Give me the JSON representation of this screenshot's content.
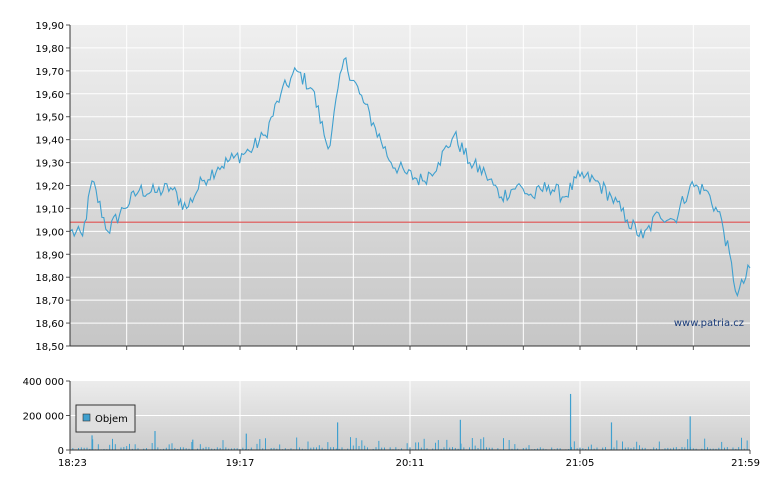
{
  "chart_data": [
    {
      "type": "line",
      "title": "",
      "xlabel": "",
      "ylabel": "",
      "ylim": [
        18.5,
        19.9
      ],
      "yticks": [
        "19,90",
        "19,80",
        "19,70",
        "19,60",
        "19,50",
        "19,40",
        "19,30",
        "19,20",
        "19,10",
        "19,00",
        "18,90",
        "18,80",
        "18,70",
        "18,60",
        "18,50"
      ],
      "reference_line": 19.04,
      "reference_color": "#e05050",
      "line_color": "#3fa0cf",
      "watermark": "www.patria.cz",
      "x": [
        "18:23",
        "18:27",
        "18:30",
        "18:35",
        "18:40",
        "18:45",
        "18:50",
        "18:55",
        "19:00",
        "19:05",
        "19:10",
        "19:15",
        "19:20",
        "19:25",
        "19:30",
        "19:35",
        "19:40",
        "19:45",
        "19:50",
        "19:55",
        "20:00",
        "20:05",
        "20:10",
        "20:15",
        "20:20",
        "20:25",
        "20:30",
        "20:35",
        "20:40",
        "20:45",
        "20:50",
        "20:55",
        "21:00",
        "21:05",
        "21:10",
        "21:15",
        "21:20",
        "21:25",
        "21:30",
        "21:35",
        "21:40",
        "21:45",
        "21:50",
        "21:55",
        "21:59"
      ],
      "values": [
        19.0,
        18.98,
        19.22,
        19.0,
        19.1,
        19.18,
        19.17,
        19.19,
        19.1,
        19.22,
        19.28,
        19.32,
        19.35,
        19.42,
        19.6,
        19.7,
        19.62,
        19.36,
        19.75,
        19.6,
        19.45,
        19.3,
        19.25,
        19.22,
        19.3,
        19.42,
        19.3,
        19.25,
        19.15,
        19.2,
        19.15,
        19.2,
        19.15,
        19.24,
        19.22,
        19.15,
        19.05,
        18.97,
        19.08,
        19.05,
        19.2,
        19.18,
        19.05,
        18.72,
        18.84
      ]
    },
    {
      "type": "bar",
      "title": "",
      "ylim": [
        0,
        400000
      ],
      "yticks": [
        "400 000",
        "200 000",
        "0"
      ],
      "xticks": [
        "18:23",
        "19:17",
        "20:11",
        "21:05",
        "21:59"
      ],
      "legend": "Objem",
      "bar_color": "#3fa0cf",
      "spikes": [
        {
          "time": "18:30",
          "value": 85000
        },
        {
          "time": "18:50",
          "value": 110000
        },
        {
          "time": "19:02",
          "value": 60000
        },
        {
          "time": "19:19",
          "value": 95000
        },
        {
          "time": "19:48",
          "value": 160000
        },
        {
          "time": "20:27",
          "value": 175000
        },
        {
          "time": "21:02",
          "value": 325000
        },
        {
          "time": "21:15",
          "value": 160000
        },
        {
          "time": "21:40",
          "value": 195000
        }
      ]
    }
  ]
}
